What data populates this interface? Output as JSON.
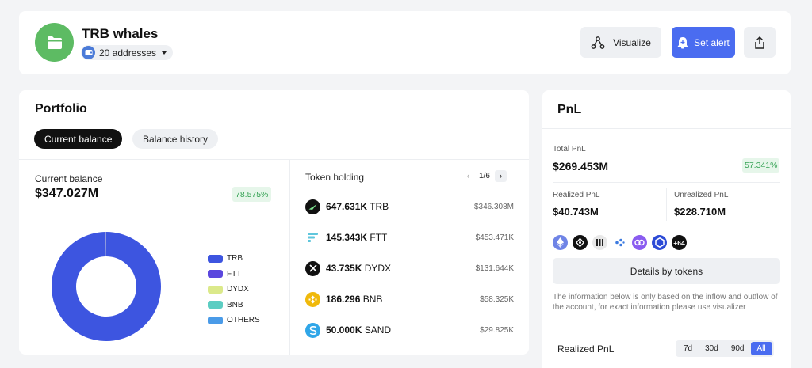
{
  "header": {
    "title": "TRB whales",
    "addresses_label": "20 addresses",
    "visualize_label": "Visualize",
    "set_alert_label": "Set alert",
    "accent_color": "#4a6cf0",
    "avatar_color": "#5dbb63"
  },
  "portfolio": {
    "title": "Portfolio",
    "tabs": [
      {
        "label": "Current balance",
        "active": true
      },
      {
        "label": "Balance history",
        "active": false
      }
    ],
    "current_balance_label": "Current balance",
    "current_balance_value": "$347.027M",
    "current_balance_change": "78.575%",
    "token_holding_label": "Token holding",
    "page_indicator": "1/6",
    "tokens": [
      {
        "amount": "647.631K",
        "symbol": "TRB",
        "usd": "$346.308M",
        "icon": "trb-icon",
        "color": "#111111"
      },
      {
        "amount": "145.343K",
        "symbol": "FTT",
        "usd": "$453.471K",
        "icon": "ftt-icon",
        "color": "#5fc6dc"
      },
      {
        "amount": "43.735K",
        "symbol": "DYDX",
        "usd": "$131.644K",
        "icon": "dydx-icon",
        "color": "#111111"
      },
      {
        "amount": "186.296",
        "symbol": "BNB",
        "usd": "$58.325K",
        "icon": "bnb-icon",
        "color": "#f0b90b"
      },
      {
        "amount": "50.000K",
        "symbol": "SAND",
        "usd": "$29.825K",
        "icon": "sand-icon",
        "color": "#2fa6e8"
      }
    ]
  },
  "chart_data": {
    "type": "pie",
    "categories": [
      "TRB",
      "FTT",
      "DYDX",
      "BNB",
      "OTHERS"
    ],
    "values": [
      99.79,
      0.13,
      0.04,
      0.02,
      0.02
    ],
    "colors": [
      "#3d55e0",
      "#5b47de",
      "#dbe98a",
      "#5ccdc2",
      "#4a9be8"
    ],
    "legend_position": "right",
    "donut": true
  },
  "pnl": {
    "title": "PnL",
    "total_label": "Total PnL",
    "total_value": "$269.453M",
    "total_change": "57.341%",
    "realized_label": "Realized PnL",
    "realized_value": "$40.743M",
    "unrealized_label": "Unrealized PnL",
    "unrealized_value": "$228.710M",
    "coins": [
      {
        "icon": "eth-icon",
        "color": "#7a8de8"
      },
      {
        "icon": "coin-black-icon",
        "color": "#111111"
      },
      {
        "icon": "coin-stripes-icon",
        "color": "#e8e8e8"
      },
      {
        "icon": "coin-dots-icon",
        "color": "#ffffff"
      },
      {
        "icon": "coin-link-icon",
        "color": "#8a5cf0"
      },
      {
        "icon": "coin-hex-icon",
        "color": "#2c4ad6"
      }
    ],
    "more_coins": "+64",
    "details_button": "Details by tokens",
    "note": "The information below is only based on the inflow and outflow of the account, for exact information please use visualizer",
    "realized_section_label": "Realized PnL",
    "periods": [
      {
        "label": "7d",
        "active": false
      },
      {
        "label": "30d",
        "active": false
      },
      {
        "label": "90d",
        "active": false
      },
      {
        "label": "All",
        "active": true
      }
    ]
  }
}
